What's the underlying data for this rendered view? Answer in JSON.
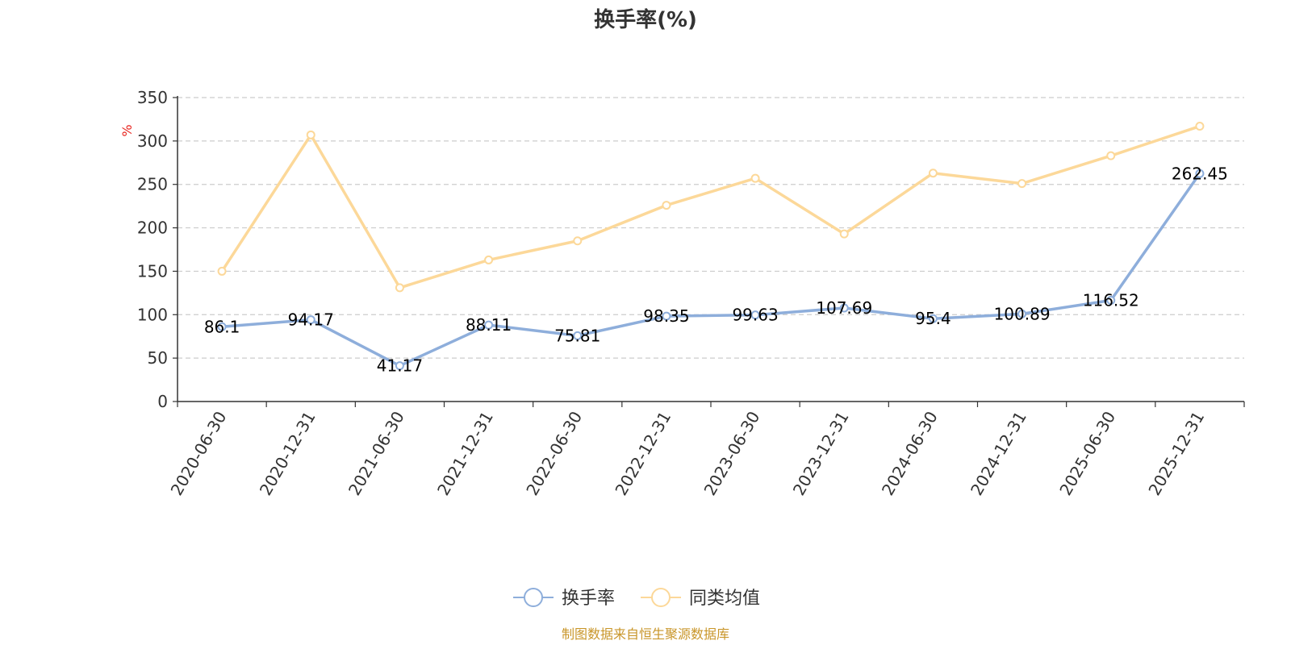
{
  "chart_data": {
    "type": "line",
    "title": "换手率(%)",
    "y_unit": "%",
    "ylim": [
      0,
      350
    ],
    "yticks": [
      0,
      50,
      100,
      150,
      200,
      250,
      300,
      350
    ],
    "categories": [
      "2020-06-30",
      "2020-12-31",
      "2021-06-30",
      "2021-12-31",
      "2022-06-30",
      "2022-12-31",
      "2023-06-30",
      "2023-12-31",
      "2024-06-30",
      "2024-12-31",
      "2025-06-30",
      "2025-12-31"
    ],
    "series": [
      {
        "name": "换手率",
        "color": "#8eaedb",
        "show_labels": true,
        "values": [
          86.1,
          94.17,
          41.17,
          88.11,
          75.81,
          98.35,
          99.63,
          107.69,
          95.4,
          100.89,
          116.52,
          262.45
        ]
      },
      {
        "name": "同类均值",
        "color": "#fcd899",
        "show_labels": false,
        "values": [
          150,
          307,
          131,
          163,
          185,
          226,
          257,
          193,
          263,
          251,
          283,
          317
        ]
      }
    ],
    "grid": true,
    "grid_style": "dashed",
    "legend_position": "bottom-center"
  },
  "source_text": "制图数据来自恒生聚源数据库"
}
